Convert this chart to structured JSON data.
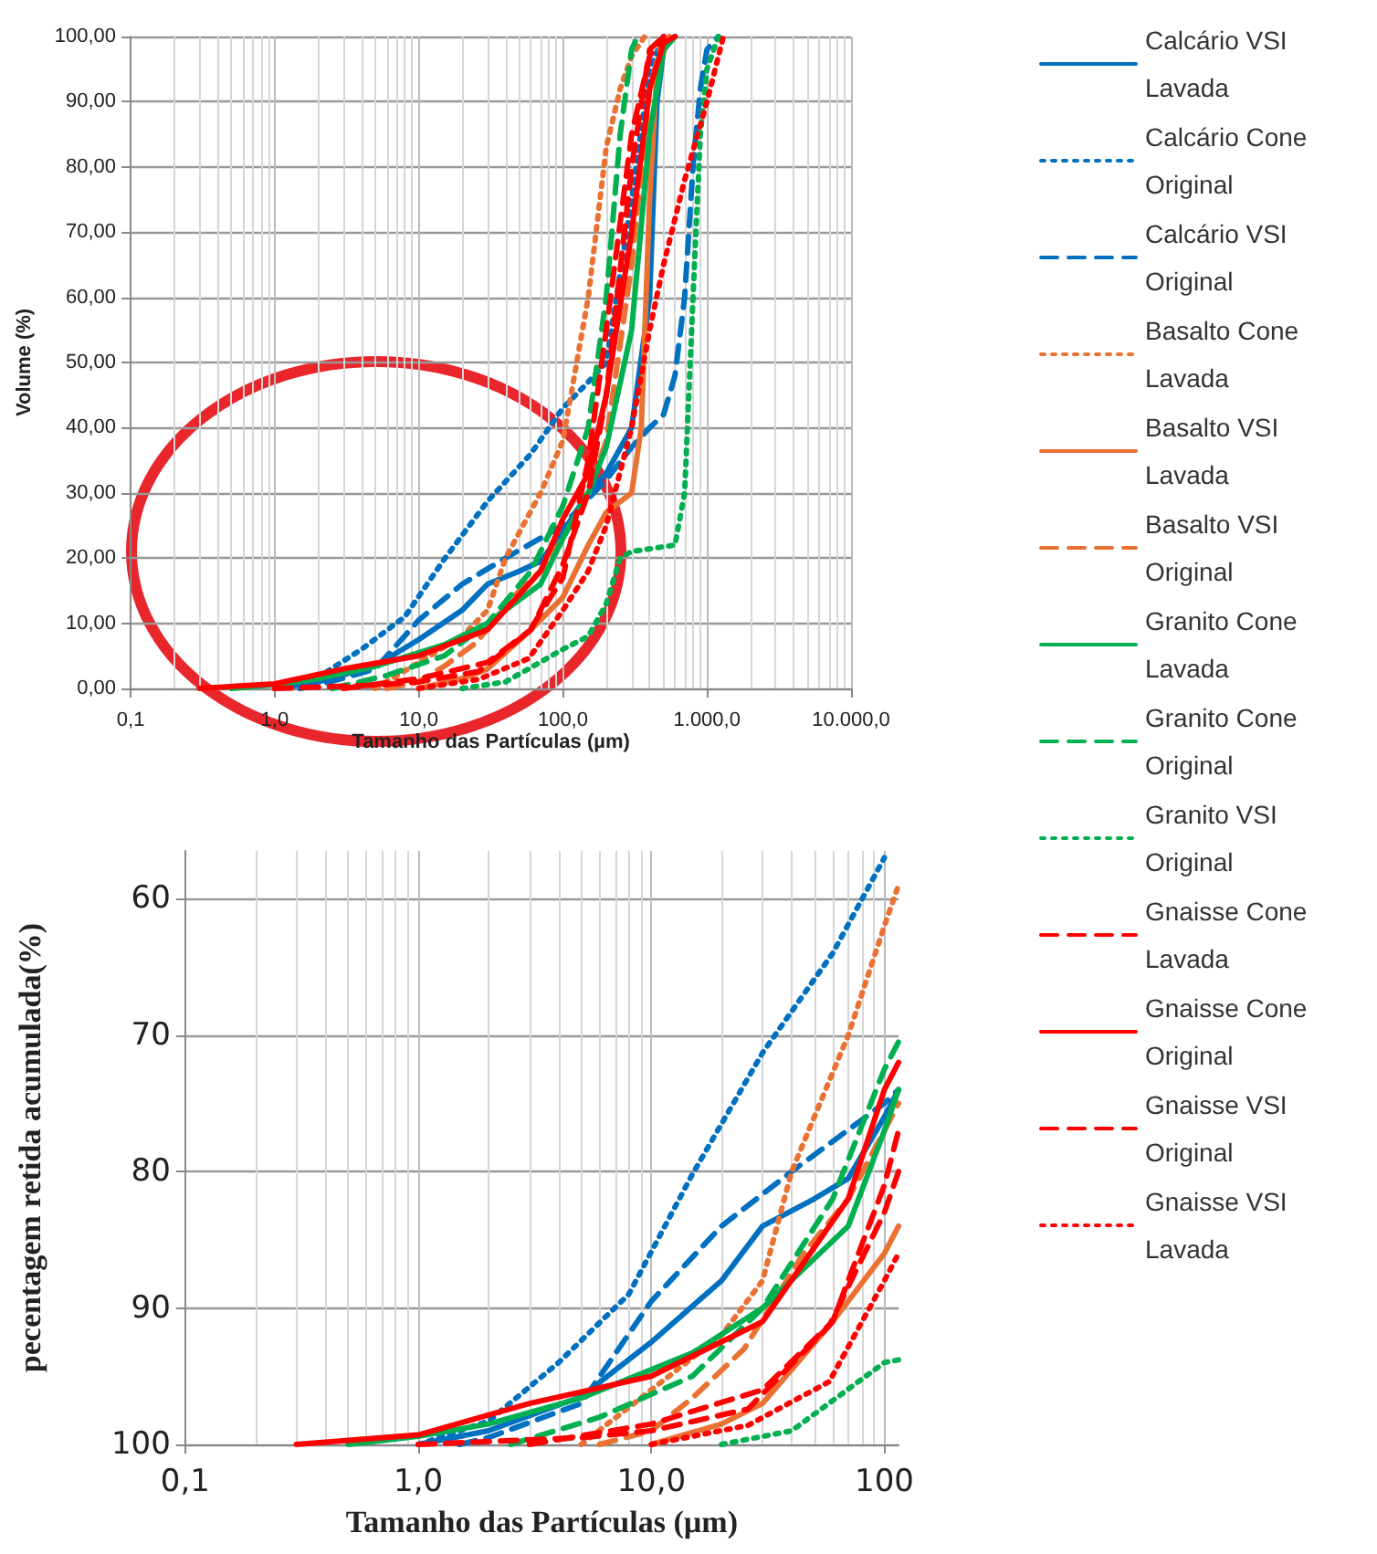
{
  "chart_data": [
    {
      "type": "line",
      "xlabel": "Tamanho das Partículas (µm)",
      "ylabel": "Volume (%)",
      "log": "x",
      "grid": true,
      "legend": "right",
      "marker": "none",
      "xlim": [
        0.1,
        10000
      ],
      "xticks": [
        {
          "value": 0.1,
          "label": "0,1"
        },
        {
          "value": 1,
          "label": "1,0"
        },
        {
          "value": 10,
          "label": "10,0"
        },
        {
          "value": 100,
          "label": "100,0"
        },
        {
          "value": 1000,
          "label": "1.000,0"
        },
        {
          "value": 10000,
          "label": "10.000,0"
        }
      ],
      "ylim": [
        0,
        100
      ],
      "yticks": [
        {
          "value": 0,
          "label": "0,00"
        },
        {
          "value": 10,
          "label": "10,00"
        },
        {
          "value": 20,
          "label": "20,00"
        },
        {
          "value": 30,
          "label": "30,00"
        },
        {
          "value": 40,
          "label": "40,00"
        },
        {
          "value": 50,
          "label": "50,00"
        },
        {
          "value": 60,
          "label": "60,00"
        },
        {
          "value": 70,
          "label": "70,00"
        },
        {
          "value": 80,
          "label": "80,00"
        },
        {
          "value": 90,
          "label": "90,00"
        },
        {
          "value": 100,
          "label": "100,00"
        }
      ],
      "series": [
        {
          "name": "Calcário VSI Lavada",
          "color": "#0070c0",
          "line_style": "solid",
          "x": [
            1,
            2,
            5,
            10,
            20,
            30,
            50,
            70,
            100,
            150,
            200,
            300,
            400,
            450,
            500,
            600
          ],
          "values": [
            0,
            1,
            3.5,
            7.5,
            12,
            16,
            18,
            19.5,
            24,
            30,
            33,
            40,
            60,
            90,
            98,
            100
          ]
        },
        {
          "name": "Calcário Cone Original",
          "color": "#0070c0",
          "line_style": "dotted",
          "x": [
            1,
            2,
            4,
            8,
            15,
            30,
            60,
            100,
            150,
            200,
            300,
            400,
            500
          ],
          "values": [
            0,
            1.7,
            6,
            11,
            19.8,
            28.7,
            36,
            43,
            47,
            50,
            75,
            95,
            100
          ]
        },
        {
          "name": "Calcário VSI Original",
          "color": "#0070c0",
          "line_style": "dashed",
          "x": [
            1.5,
            2,
            5,
            10,
            20,
            40,
            100,
            200,
            300,
            400,
            500,
            600,
            700,
            800,
            900,
            1000,
            1200
          ],
          "values": [
            0,
            0.5,
            3,
            10.5,
            16,
            20,
            25,
            32,
            37,
            40,
            42,
            48,
            60,
            80,
            92,
            98,
            100
          ]
        },
        {
          "name": "Basalto Cone Lavada",
          "color": "#e97132",
          "line_style": "dotted",
          "x": [
            5,
            10,
            20,
            30,
            40,
            70,
            100,
            150,
            200,
            250,
            300,
            370
          ],
          "values": [
            0,
            4,
            8,
            12,
            20,
            30,
            38,
            60,
            83,
            92,
            97,
            100
          ]
        },
        {
          "name": "Basalto VSI Lavada",
          "color": "#e97132",
          "line_style": "solid",
          "x": [
            10,
            20,
            30,
            60,
            100,
            150,
            200,
            300,
            350,
            400,
            450,
            550
          ],
          "values": [
            0,
            1.5,
            3,
            9,
            14,
            22,
            27,
            30,
            40,
            75,
            95,
            100
          ]
        },
        {
          "name": "Basalto VSI Original",
          "color": "#e97132",
          "line_style": "dashed",
          "x": [
            6,
            10,
            15,
            25,
            45,
            70,
            100,
            150,
            200,
            300,
            400,
            500
          ],
          "values": [
            0,
            1,
            3.4,
            7,
            14,
            18,
            23,
            30,
            38,
            65,
            92,
            100
          ]
        },
        {
          "name": "Granito Cone Lavada",
          "color": "#00b050",
          "line_style": "solid",
          "x": [
            0.5,
            1,
            2,
            5,
            15,
            30,
            70,
            100,
            150,
            200,
            300,
            400,
            500,
            600
          ],
          "values": [
            0,
            0.6,
            1.5,
            3.4,
            6.7,
            10,
            16,
            23,
            30,
            37,
            55,
            85,
            98,
            100
          ]
        },
        {
          "name": "Granito Cone Original",
          "color": "#00b050",
          "line_style": "dashed",
          "x": [
            2.5,
            6,
            15,
            30,
            60,
            100,
            150,
            200,
            250,
            300,
            330
          ],
          "values": [
            0,
            2,
            5,
            10,
            18,
            28,
            40,
            60,
            85,
            98,
            100
          ]
        },
        {
          "name": "Granito VSI Original",
          "color": "#00b050",
          "line_style": "dotted",
          "x": [
            20,
            40,
            100,
            150,
            200,
            250,
            300,
            600,
            700,
            800,
            900,
            1000,
            1200
          ],
          "values": [
            0,
            1,
            6,
            8,
            13,
            20,
            21,
            22,
            30,
            60,
            85,
            95,
            100
          ]
        },
        {
          "name": "Gnaisse Cone Lavada",
          "color": "#ff0000",
          "line_style": "dashed",
          "x": [
            3,
            10,
            30,
            60,
            100,
            150,
            200,
            300,
            400,
            500
          ],
          "values": [
            0,
            1.5,
            4,
            9,
            19,
            30,
            45,
            80,
            98,
            100
          ]
        },
        {
          "name": "Gnaisse Cone Original",
          "color": "#ff0000",
          "line_style": "solid",
          "x": [
            0.3,
            1,
            3,
            10,
            30,
            70,
            100,
            150,
            200,
            300,
            400,
            500,
            600
          ],
          "values": [
            0,
            0.7,
            3,
            5,
            9,
            18,
            26,
            33,
            45,
            70,
            92,
            99,
            100
          ]
        },
        {
          "name": "Gnaisse VSI Original",
          "color": "#ff0000",
          "line_style": "dashed",
          "x": [
            1,
            5,
            10,
            26,
            58,
            100,
            150,
            200,
            300,
            400,
            500
          ],
          "values": [
            0,
            0.5,
            1,
            2.6,
            8.7,
            17,
            35,
            55,
            85,
            97,
            100
          ]
        },
        {
          "name": "Gnaisse VSI Lavada",
          "color": "#ff0000",
          "line_style": "dotted",
          "x": [
            10,
            26,
            58,
            100,
            150,
            200,
            300,
            400,
            500,
            700,
            1000,
            1300
          ],
          "values": [
            0,
            1.4,
            4.6,
            12,
            18,
            25,
            40,
            55,
            65,
            78,
            90,
            100
          ]
        }
      ]
    },
    {
      "type": "line",
      "xlabel": "Tamanho das Partículas (µm)",
      "ylabel": "pecentagem retida acumulada(%)",
      "log": "x",
      "grid": true,
      "marker": "none",
      "xlim": [
        0.1,
        115
      ],
      "xticks": [
        {
          "value": 0.1,
          "label": "0,1"
        },
        {
          "value": 1,
          "label": "1,0"
        },
        {
          "value": 10,
          "label": "10,0"
        },
        100
      ],
      "ylim": [
        100,
        56.5
      ],
      "yticks": [
        60,
        70,
        80,
        90,
        100
      ],
      "series": [
        {
          "color": "#0070c0",
          "line_style": "solid",
          "x": [
            1,
            2,
            5,
            10,
            20,
            30,
            50,
            70,
            100,
            115
          ],
          "values": [
            100,
            99,
            96.5,
            92.5,
            88,
            84,
            82,
            80.5,
            76,
            74
          ]
        },
        {
          "color": "#0070c0",
          "line_style": "dotted",
          "x": [
            1,
            2,
            4,
            8,
            15,
            30,
            60,
            100
          ],
          "values": [
            100,
            98.3,
            94,
            89,
            80.2,
            71.3,
            64,
            57
          ]
        },
        {
          "color": "#0070c0",
          "line_style": "dashed",
          "x": [
            1.5,
            2,
            5,
            10,
            20,
            40,
            100,
            115
          ],
          "values": [
            100,
            99.5,
            97,
            89.5,
            84,
            80,
            75,
            74
          ]
        },
        {
          "color": "#e97132",
          "line_style": "dotted",
          "x": [
            5,
            10,
            20,
            30,
            40,
            70,
            100,
            115
          ],
          "values": [
            100,
            96,
            92,
            88,
            80,
            70,
            62,
            59
          ]
        },
        {
          "color": "#e97132",
          "line_style": "solid",
          "x": [
            10,
            20,
            30,
            60,
            100,
            115
          ],
          "values": [
            100,
            98.5,
            97,
            91,
            86,
            84
          ]
        },
        {
          "color": "#e97132",
          "line_style": "dashed",
          "x": [
            6,
            10,
            15,
            25,
            45,
            70,
            100,
            115
          ],
          "values": [
            100,
            99,
            96.6,
            93,
            86,
            82,
            77,
            75
          ]
        },
        {
          "color": "#00b050",
          "line_style": "solid",
          "x": [
            0.5,
            1,
            2,
            5,
            15,
            30,
            70,
            100,
            115
          ],
          "values": [
            100,
            99.4,
            98.5,
            96.6,
            93.3,
            90,
            84,
            77,
            74
          ]
        },
        {
          "color": "#00b050",
          "line_style": "dashed",
          "x": [
            2.5,
            6,
            15,
            30,
            60,
            100,
            115
          ],
          "values": [
            100,
            98,
            95,
            90,
            82,
            72.5,
            70.5
          ]
        },
        {
          "color": "#00b050",
          "line_style": "dotted",
          "x": [
            20,
            40,
            100,
            115
          ],
          "values": [
            100,
            99,
            94,
            93.8
          ]
        },
        {
          "color": "#ff0000",
          "line_style": "dashed",
          "x": [
            3,
            10,
            30,
            60,
            100,
            115
          ],
          "values": [
            100,
            98.5,
            96,
            91,
            81,
            77
          ]
        },
        {
          "color": "#ff0000",
          "line_style": "solid",
          "x": [
            0.3,
            1,
            3,
            10,
            30,
            70,
            100,
            115
          ],
          "values": [
            100,
            99.3,
            97,
            95,
            91,
            82,
            74,
            72
          ]
        },
        {
          "color": "#ff0000",
          "line_style": "dashed",
          "x": [
            1,
            5,
            10,
            26,
            58,
            100,
            115
          ],
          "values": [
            100,
            99.5,
            99,
            97.4,
            91.3,
            83,
            80
          ]
        },
        {
          "color": "#ff0000",
          "line_style": "dotted",
          "x": [
            10,
            26,
            58,
            100,
            115
          ],
          "values": [
            100,
            98.6,
            95.4,
            88,
            86
          ]
        }
      ]
    }
  ]
}
